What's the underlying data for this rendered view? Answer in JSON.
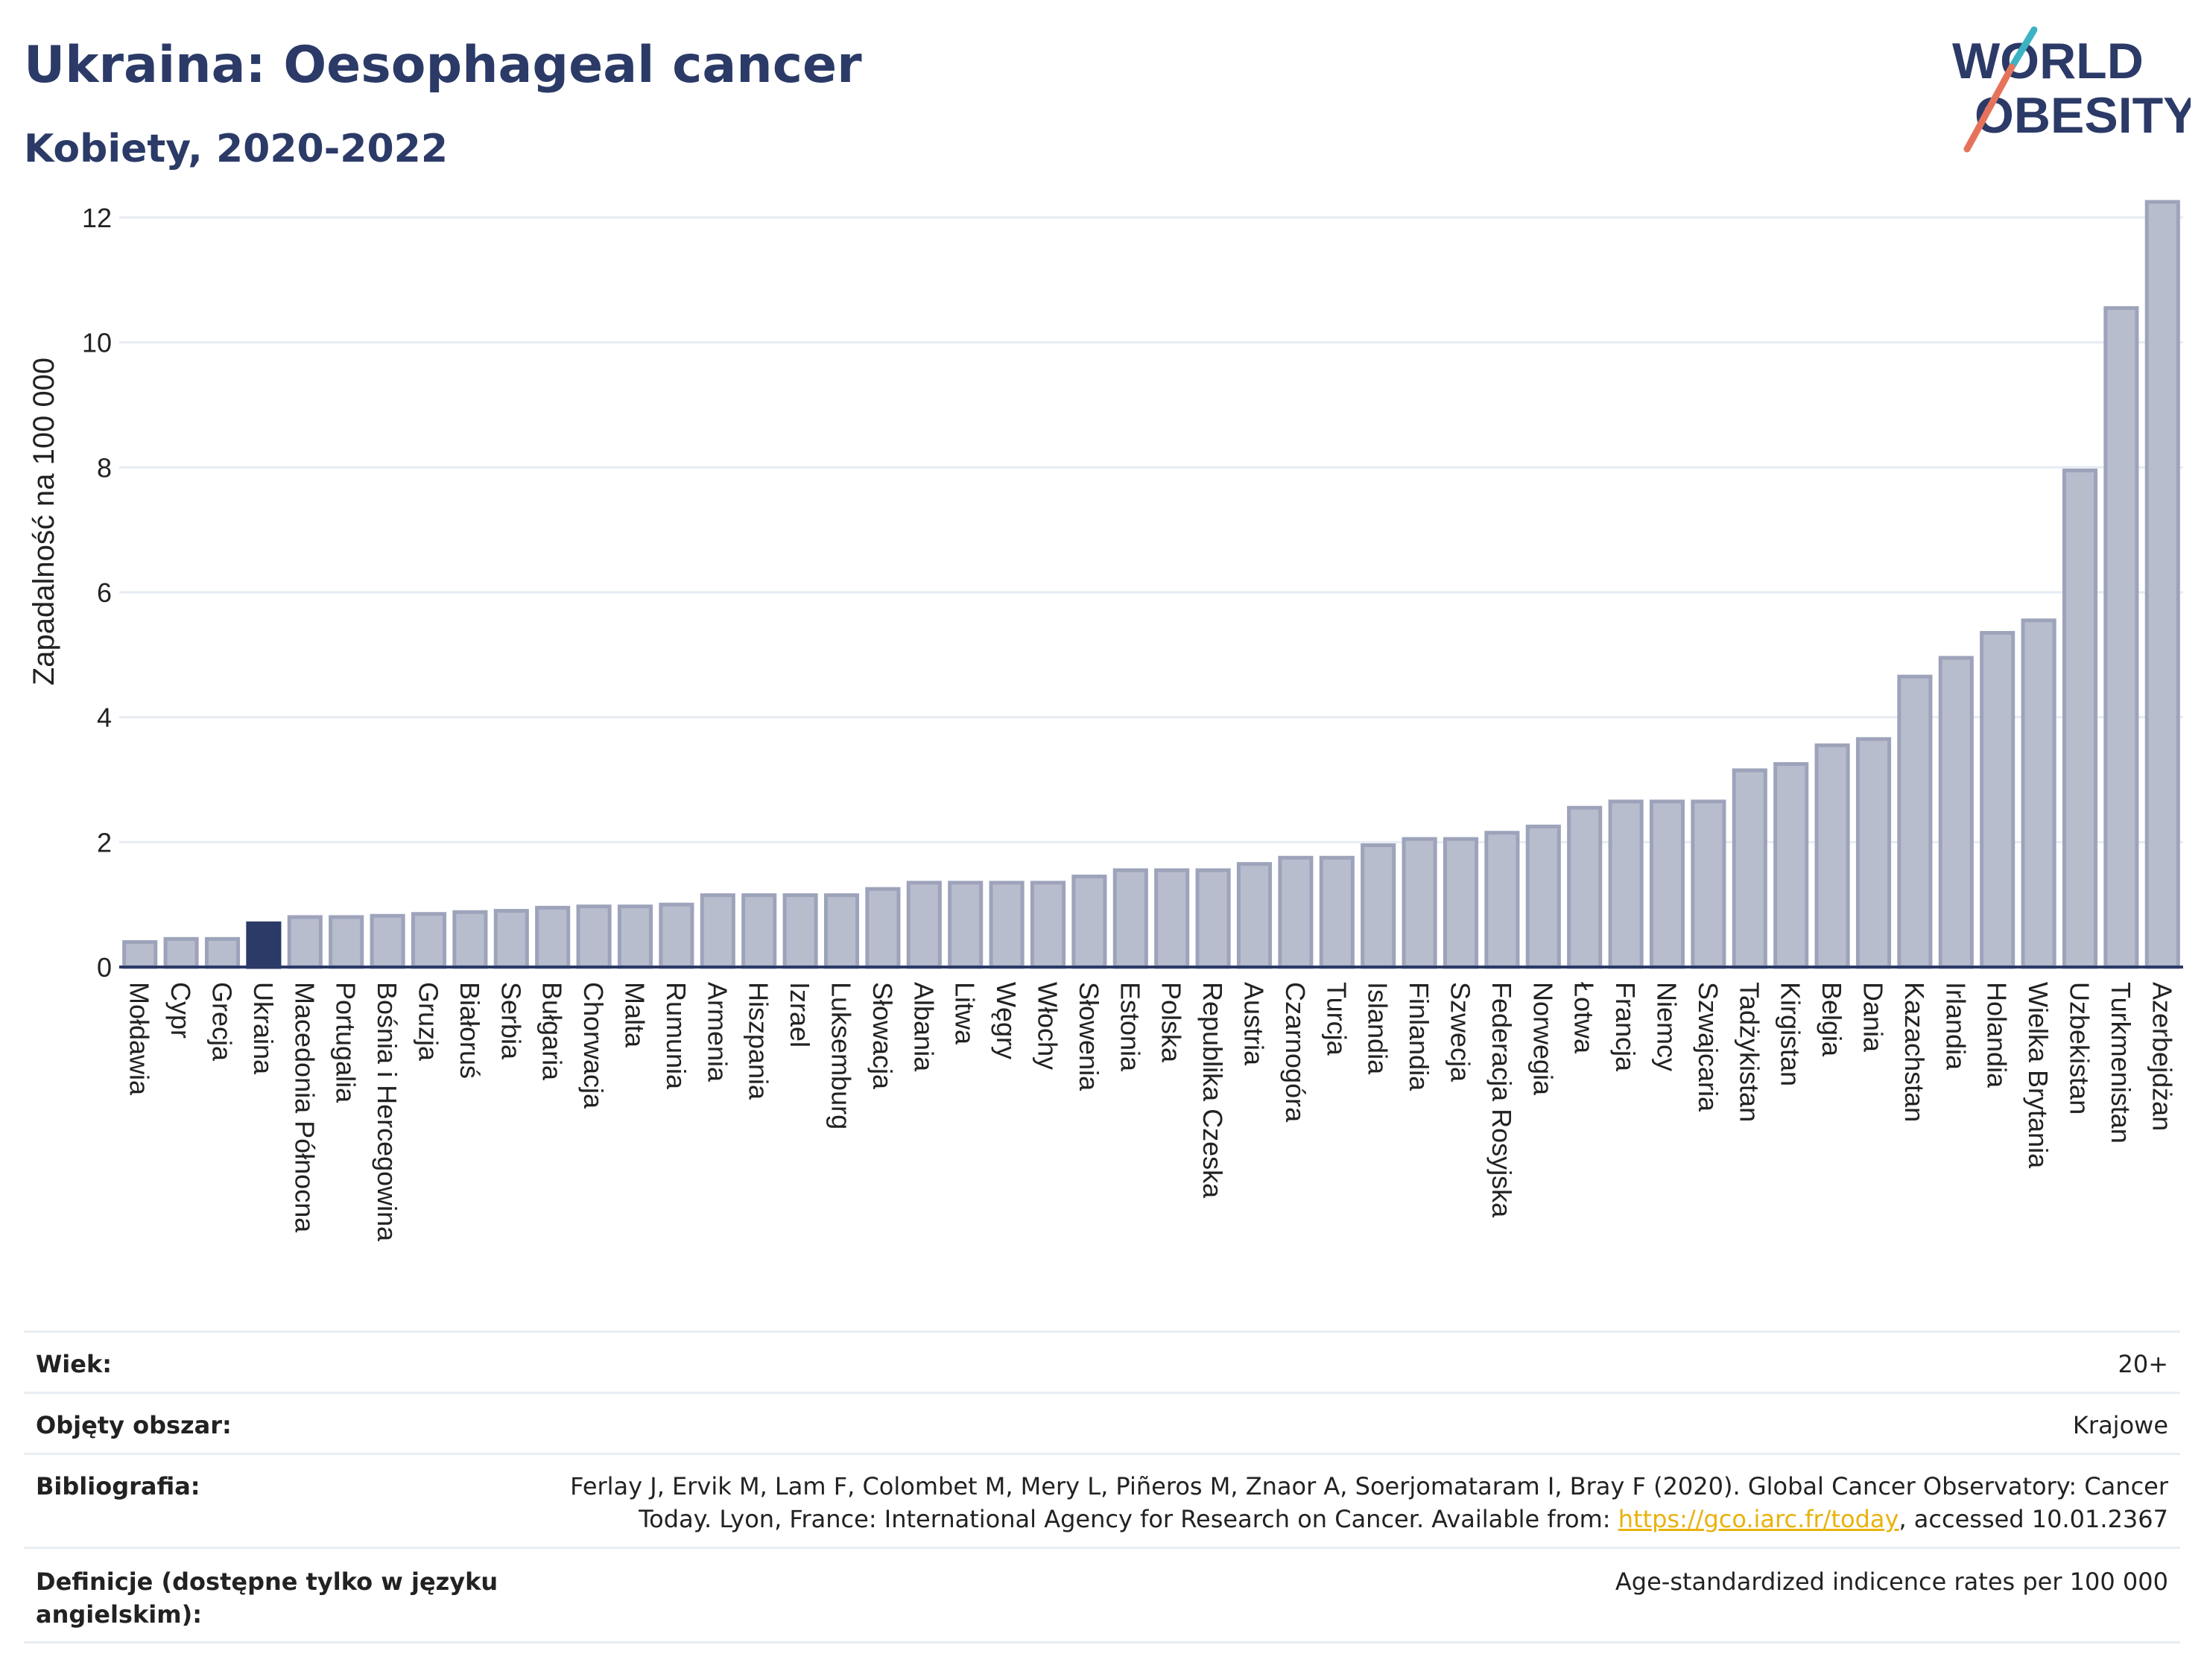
{
  "title": "Ukraina: Oesophageal cancer",
  "subtitle": "Kobiety, 2020-2022",
  "logo": {
    "line1": "WORLD",
    "line2": "OBESITY",
    "colors": [
      "#2b3a67",
      "#e5735c",
      "#3bb3c3"
    ]
  },
  "colors": {
    "bar": "#b8bdcd",
    "bar_stroke": "#9da3ba",
    "highlight": "#2b3a67",
    "text_dark": "#2b3a67",
    "grid": "#e6ecf2",
    "link": "#e8b20c"
  },
  "chart_data": {
    "type": "bar",
    "ylabel": "Zapadalność na 100 000",
    "ylim": [
      0,
      12.5
    ],
    "yticks": [
      0,
      2,
      4,
      6,
      8,
      10,
      12
    ],
    "grid": true,
    "highlight": "Ukraina",
    "categories": [
      "Mołdawia",
      "Cypr",
      "Grecja",
      "Ukraina",
      "Macedonia Północna",
      "Portugalia",
      "Bośnia i Hercegowina",
      "Gruzja",
      "Białoruś",
      "Serbia",
      "Bułgaria",
      "Chorwacja",
      "Malta",
      "Rumunia",
      "Armenia",
      "Hiszpania",
      "Izrael",
      "Luksemburg",
      "Słowacja",
      "Albania",
      "Litwa",
      "Węgry",
      "Włochy",
      "Słowenia",
      "Estonia",
      "Polska",
      "Republika Czeska",
      "Austria",
      "Czarnogóra",
      "Turcja",
      "Islandia",
      "Finlandia",
      "Szwecja",
      "Federacja Rosyjska",
      "Norwegia",
      "Łotwa",
      "Francja",
      "Niemcy",
      "Szwajcaria",
      "Tadżykistan",
      "Kirgistan",
      "Belgia",
      "Dania",
      "Kazachstan",
      "Irlandia",
      "Holandia",
      "Wielka Brytania",
      "Uzbekistan",
      "Turkmenistan",
      "Azerbejdżan"
    ],
    "values": [
      0.4,
      0.45,
      0.45,
      0.7,
      0.8,
      0.8,
      0.82,
      0.85,
      0.88,
      0.9,
      0.95,
      0.97,
      0.97,
      1.0,
      1.15,
      1.15,
      1.15,
      1.15,
      1.25,
      1.35,
      1.35,
      1.35,
      1.35,
      1.45,
      1.55,
      1.55,
      1.55,
      1.65,
      1.75,
      1.75,
      1.95,
      2.05,
      2.05,
      2.15,
      2.25,
      2.55,
      2.65,
      2.65,
      2.65,
      3.15,
      3.25,
      3.55,
      3.65,
      4.65,
      4.95,
      5.35,
      5.55,
      7.95,
      10.55,
      12.25
    ]
  },
  "meta": [
    {
      "label": "Wiek:",
      "value": "20+"
    },
    {
      "label": "Objęty obszar:",
      "value": "Krajowe"
    },
    {
      "label": "Bibliografia:",
      "value_line1": "Ferlay J, Ervik M, Lam F, Colombet M, Mery L, Piñeros M, Znaor A, Soerjomataram I, Bray F (2020). Global Cancer Observatory: Cancer",
      "value_line2_pre": "Today. Lyon, France: International Agency for Research on Cancer. Available from: ",
      "value_link": "https://gco.iarc.fr/today",
      "value_line2_post": ", accessed 10.01.2367"
    },
    {
      "label_line1": "Definicje (dostępne tylko w języku",
      "label_line2": "angielskim):",
      "value": "Age-standardized indicence rates per 100 000"
    }
  ]
}
